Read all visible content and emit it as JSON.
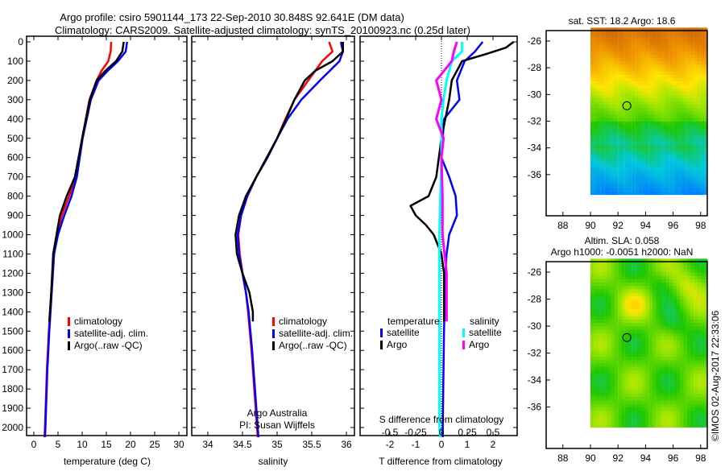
{
  "title_line1": "Argo profile: csiro 5901144_173 22-Sep-2010 30.848S 92.641E (DM data)",
  "title_line2": "Climatology: CARS2009. Satellite-adjusted climatology: synTS_20100923.nc (0.25d later)",
  "colors": {
    "climatology": "#ff0000",
    "satellite": "#0000ff",
    "argo": "#000000",
    "s_satellite": "#00ffff",
    "s_argo": "#ff00ff"
  },
  "chart_data": [
    {
      "type": "line",
      "xlabel": "temperature (deg C)",
      "xlim": [
        -1.5,
        31.5
      ],
      "xticks": [
        0,
        5,
        10,
        15,
        20,
        25,
        30
      ],
      "ylim": [
        2080,
        -20
      ],
      "yticks": [
        0,
        100,
        200,
        300,
        400,
        500,
        600,
        700,
        800,
        900,
        1000,
        1100,
        1200,
        1300,
        1400,
        1500,
        1600,
        1700,
        1800,
        1900,
        2000
      ],
      "legend": [
        "climatology",
        "satellite-adj. clim.",
        "Argo(..raw -QC)"
      ],
      "series": [
        {
          "name": "climatology",
          "color": "#ff0000",
          "depth": [
            0,
            50,
            100,
            150,
            200,
            300,
            500,
            700,
            800,
            900,
            1000,
            1100,
            1300,
            1500,
            1700,
            2000,
            2050
          ],
          "values": [
            16,
            15.9,
            15.4,
            14,
            13,
            11.5,
            10,
            8.7,
            7.3,
            5.8,
            4.8,
            4.1,
            3.6,
            3.1,
            2.7,
            2.3,
            2.2
          ]
        },
        {
          "name": "satellite-adj. clim.",
          "color": "#0000ff",
          "depth": [
            0,
            50,
            100,
            150,
            200,
            300,
            500,
            700,
            800,
            900,
            1000,
            1100,
            1300,
            1500,
            1700,
            2000,
            2050
          ],
          "values": [
            19.3,
            19,
            17.4,
            15.3,
            13.4,
            11.8,
            10.1,
            8.9,
            7.8,
            6.3,
            5,
            4.2,
            3.7,
            3.2,
            2.8,
            2.4,
            2.3
          ]
        },
        {
          "name": "Argo(..raw -QC)",
          "color": "#000000",
          "depth": [
            0,
            50,
            100,
            150,
            200,
            300,
            500,
            700,
            800,
            900,
            1000,
            1100,
            1300,
            1450
          ],
          "values": [
            18.6,
            18.3,
            17,
            14.8,
            13,
            11.6,
            10,
            8.5,
            6.8,
            5.4,
            4.7,
            4,
            3.6,
            3.2
          ]
        }
      ]
    },
    {
      "type": "line",
      "xlabel": "salinity",
      "xlim": [
        33.8,
        36.15
      ],
      "xticks": [
        34,
        34.5,
        35,
        35.5,
        36
      ],
      "ylim": [
        2080,
        -20
      ],
      "legend": [
        "climatology",
        "satellite-adj. clim.",
        "Argo(..raw -QC)"
      ],
      "annotation": [
        "Argo Australia",
        "PI: Susan Wijffels"
      ],
      "series": [
        {
          "name": "climatology",
          "color": "#ff0000",
          "depth": [
            0,
            50,
            100,
            200,
            300,
            400,
            500,
            600,
            700,
            800,
            900,
            1000,
            1100,
            1200,
            1300,
            1400,
            1600,
            1800,
            2050
          ],
          "values": [
            35.75,
            35.8,
            35.65,
            35.45,
            35.25,
            35.12,
            35.0,
            34.86,
            34.7,
            34.57,
            34.48,
            34.44,
            34.46,
            34.5,
            34.55,
            34.58,
            34.63,
            34.67,
            34.72
          ]
        },
        {
          "name": "satellite-adj. clim.",
          "color": "#0000ff",
          "depth": [
            0,
            50,
            100,
            200,
            300,
            400,
            500,
            600,
            700,
            800,
            900,
            1000,
            1100,
            1200,
            1300,
            1400,
            1600,
            1800,
            2050
          ],
          "values": [
            35.92,
            35.95,
            35.9,
            35.62,
            35.35,
            35.15,
            35.0,
            34.86,
            34.7,
            34.57,
            34.48,
            34.43,
            34.45,
            34.5,
            34.55,
            34.59,
            34.64,
            34.68,
            34.73
          ]
        },
        {
          "name": "Argo(..raw -QC)",
          "color": "#000000",
          "depth": [
            0,
            50,
            100,
            150,
            200,
            300,
            400,
            500,
            600,
            700,
            800,
            900,
            1000,
            1100,
            1200,
            1300,
            1400,
            1450
          ],
          "values": [
            35.95,
            35.95,
            35.8,
            35.55,
            35.4,
            35.25,
            35.13,
            35.0,
            34.85,
            34.7,
            34.55,
            34.45,
            34.4,
            34.42,
            34.5,
            34.6,
            34.65,
            34.65
          ]
        }
      ]
    },
    {
      "type": "line",
      "xlabel": "T difference from climatology",
      "xlabel_top": "S difference from climatology",
      "xlim": [
        -3,
        3
      ],
      "xticks": [
        -2,
        -1,
        0,
        1,
        2
      ],
      "s_xticks": [
        -0.5,
        -0.25,
        0,
        0.25,
        0.5
      ],
      "s_xtick_labels": [
        "-0.5",
        "-0.25",
        "0",
        "0.25",
        "0.5"
      ],
      "ylim": [
        2080,
        -20
      ],
      "legend_temperature": [
        "temperature",
        "satellite",
        "Argo"
      ],
      "legend_salinity": [
        "salinity",
        "satellite",
        "Argo"
      ],
      "series": [
        {
          "name": "T satellite",
          "color": "#0000ff",
          "scale": "T",
          "depth": [
            0,
            50,
            100,
            200,
            300,
            400,
            500,
            600,
            700,
            800,
            900,
            1000,
            1100,
            1200,
            1500,
            2000,
            2050
          ],
          "values": [
            1.6,
            1.3,
            0.9,
            0.6,
            0.7,
            0.1,
            0.05,
            0,
            0.3,
            0.55,
            0.6,
            0.3,
            0.2,
            0.15,
            0.1,
            0.05,
            0.05
          ]
        },
        {
          "name": "T Argo",
          "color": "#000000",
          "scale": "T",
          "depth": [
            0,
            30,
            60,
            100,
            200,
            300,
            500,
            700,
            800,
            850,
            900,
            950,
            1000,
            1100,
            1200,
            1450
          ],
          "values": [
            2.8,
            2.5,
            1.8,
            0.8,
            0.4,
            0.3,
            0,
            -0.2,
            -0.5,
            -1.2,
            -1.0,
            -0.6,
            -0.3,
            0,
            0.1,
            0.1
          ]
        },
        {
          "name": "S satellite",
          "color": "#00ffff",
          "scale": "S",
          "depth": [
            0,
            50,
            100,
            200,
            300,
            400,
            600,
            1000,
            1400,
            2000,
            2050
          ],
          "values": [
            0.2,
            0.2,
            0.1,
            0.05,
            0.02,
            0,
            0,
            -0.02,
            -0.02,
            -0.02,
            -0.01
          ]
        },
        {
          "name": "S Argo",
          "color": "#ff00ff",
          "scale": "S",
          "depth": [
            0,
            50,
            100,
            200,
            300,
            400,
            500,
            600,
            800,
            1000,
            1200,
            1300,
            1450
          ],
          "values": [
            0.15,
            0.12,
            0.1,
            -0.05,
            0.0,
            -0.05,
            0.02,
            0,
            0.01,
            0.01,
            0.05,
            0.05,
            0.05
          ]
        }
      ]
    },
    {
      "type": "heatmap",
      "title": "sat. SST: 18.2 Argo: 18.6",
      "xticks": [
        88,
        90,
        92,
        94,
        96,
        98
      ],
      "yticks": [
        -26,
        -28,
        -30,
        -32,
        -34,
        -36
      ],
      "data_lon_range": [
        90,
        98.5
      ],
      "marker": {
        "lon": 92.641,
        "lat": -30.848
      }
    },
    {
      "type": "heatmap",
      "title_line1": "Altim. SLA: 0.058",
      "title_line2": "Argo h1000: -0.0051 h2000: NaN",
      "xticks": [
        88,
        90,
        92,
        94,
        96,
        98
      ],
      "yticks": [
        -26,
        -28,
        -30,
        -32,
        -34,
        -36
      ],
      "data_lon_range": [
        90,
        98.5
      ],
      "marker": {
        "lon": 92.641,
        "lat": -30.848
      }
    }
  ],
  "credit": "©IMOS 02-Aug-2017 22:33:06"
}
